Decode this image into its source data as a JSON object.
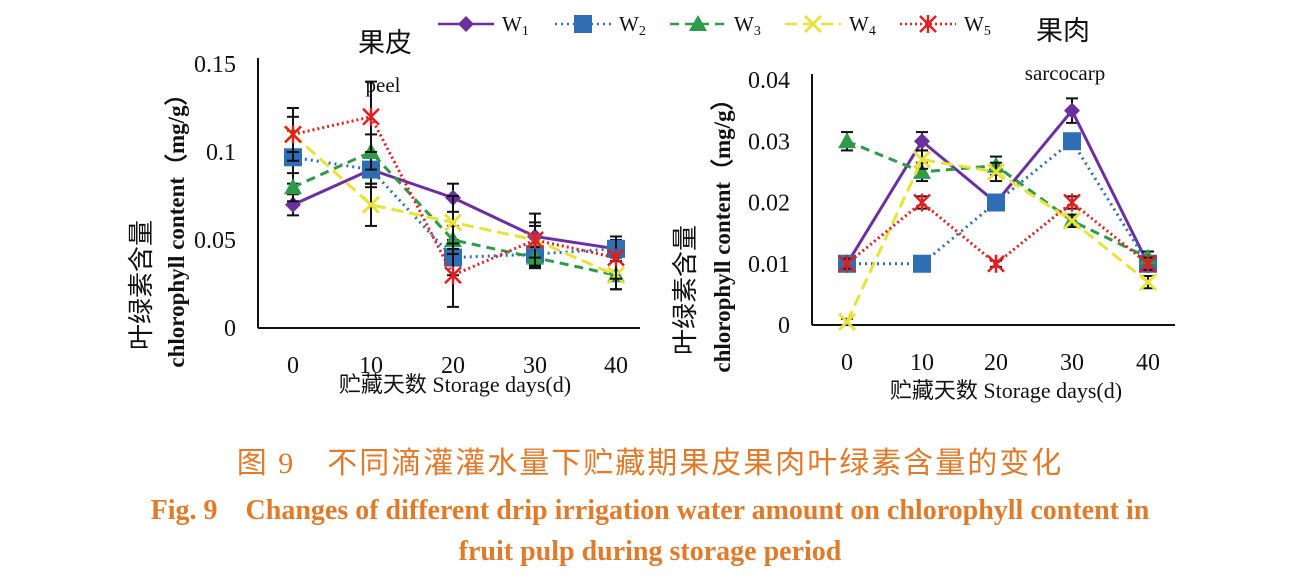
{
  "legend": [
    {
      "name": "W1",
      "sub": "1",
      "color": "#6b2fa0",
      "marker": "diamond",
      "dash": ""
    },
    {
      "name": "W2",
      "sub": "2",
      "color": "#2f6db5",
      "marker": "square",
      "dash": "2,4"
    },
    {
      "name": "W3",
      "sub": "3",
      "color": "#2e9a4a",
      "marker": "triangle",
      "dash": "9,6"
    },
    {
      "name": "W4",
      "sub": "4",
      "color": "#e8e23a",
      "marker": "x",
      "dash": "12,6"
    },
    {
      "name": "W5",
      "sub": "5",
      "color": "#e02020",
      "marker": "asterisk",
      "dash": "2,3"
    }
  ],
  "chart_data": [
    {
      "type": "line",
      "title_cn": "果皮",
      "title_en": "peel",
      "ylabel_cn": "叶绿素含量",
      "ylabel_en": "chlorophyll content（mg/g）",
      "xlabel": "贮藏天数 Storage days(d)",
      "x": [
        0,
        10,
        20,
        30,
        40
      ],
      "ylim": [
        0,
        0.15
      ],
      "yticks": [
        0,
        0.05,
        0.1,
        0.15
      ],
      "ytick_labels": [
        "0",
        "0.05",
        "0.1",
        "0.15"
      ],
      "series": [
        {
          "name": "W1",
          "values": [
            0.07,
            0.09,
            0.074,
            0.052,
            0.045
          ],
          "err": [
            0.006,
            0.008,
            0.008,
            0.006,
            0.005
          ]
        },
        {
          "name": "W2",
          "values": [
            0.097,
            0.09,
            0.04,
            0.042,
            0.045
          ],
          "err": [
            0.015,
            0.01,
            0.01,
            0.006,
            0.007
          ]
        },
        {
          "name": "W3",
          "values": [
            0.08,
            0.1,
            0.05,
            0.04,
            0.03
          ],
          "err": [
            0.008,
            0.01,
            0.008,
            0.006,
            0.008
          ]
        },
        {
          "name": "W4",
          "values": [
            0.11,
            0.07,
            0.06,
            0.05,
            0.03
          ],
          "err": [
            0.01,
            0.012,
            0.015,
            0.01,
            0.008
          ]
        },
        {
          "name": "W5",
          "values": [
            0.11,
            0.12,
            0.03,
            0.05,
            0.04
          ],
          "err": [
            0.015,
            0.02,
            0.018,
            0.015,
            0.012
          ]
        }
      ]
    },
    {
      "type": "line",
      "title_cn": "果肉",
      "title_en": "sarcocarp",
      "ylabel_cn": "叶绿素含量",
      "ylabel_en": "chlorophyll content（mg/g）",
      "xlabel": "贮藏天数 Storage days(d)",
      "x": [
        0,
        10,
        20,
        30,
        40
      ],
      "ylim": [
        0,
        0.04
      ],
      "yticks": [
        0,
        0.01,
        0.02,
        0.03,
        0.04
      ],
      "ytick_labels": [
        "0",
        "0.01",
        "0.02",
        "0.03",
        "0.04"
      ],
      "series": [
        {
          "name": "W1",
          "values": [
            0.01,
            0.03,
            0.02,
            0.035,
            0.01
          ],
          "err": [
            0.001,
            0.0015,
            0.001,
            0.002,
            0.001
          ]
        },
        {
          "name": "W2",
          "values": [
            0.01,
            0.01,
            0.02,
            0.03,
            0.01
          ],
          "err": [
            0.0005,
            0.0005,
            0.001,
            0.001,
            0.001
          ]
        },
        {
          "name": "W3",
          "values": [
            0.03,
            0.025,
            0.026,
            0.017,
            0.011
          ],
          "err": [
            0.0015,
            0.0015,
            0.0015,
            0.001,
            0.001
          ]
        },
        {
          "name": "W4",
          "values": [
            0.0005,
            0.027,
            0.025,
            0.017,
            0.007
          ],
          "err": [
            0.0005,
            0.0015,
            0.0015,
            0.001,
            0.001
          ]
        },
        {
          "name": "W5",
          "values": [
            0.01,
            0.02,
            0.01,
            0.02,
            0.01
          ],
          "err": [
            0.0008,
            0.001,
            0.0005,
            0.001,
            0.001
          ]
        }
      ]
    }
  ],
  "caption": {
    "cn": "图 9　不同滴灌灌水量下贮藏期果皮果肉叶绿素含量的变化",
    "en_line1": "Fig. 9　Changes of different drip irrigation water amount on chlorophyll content in",
    "en_line2": "fruit pulp during storage period"
  }
}
